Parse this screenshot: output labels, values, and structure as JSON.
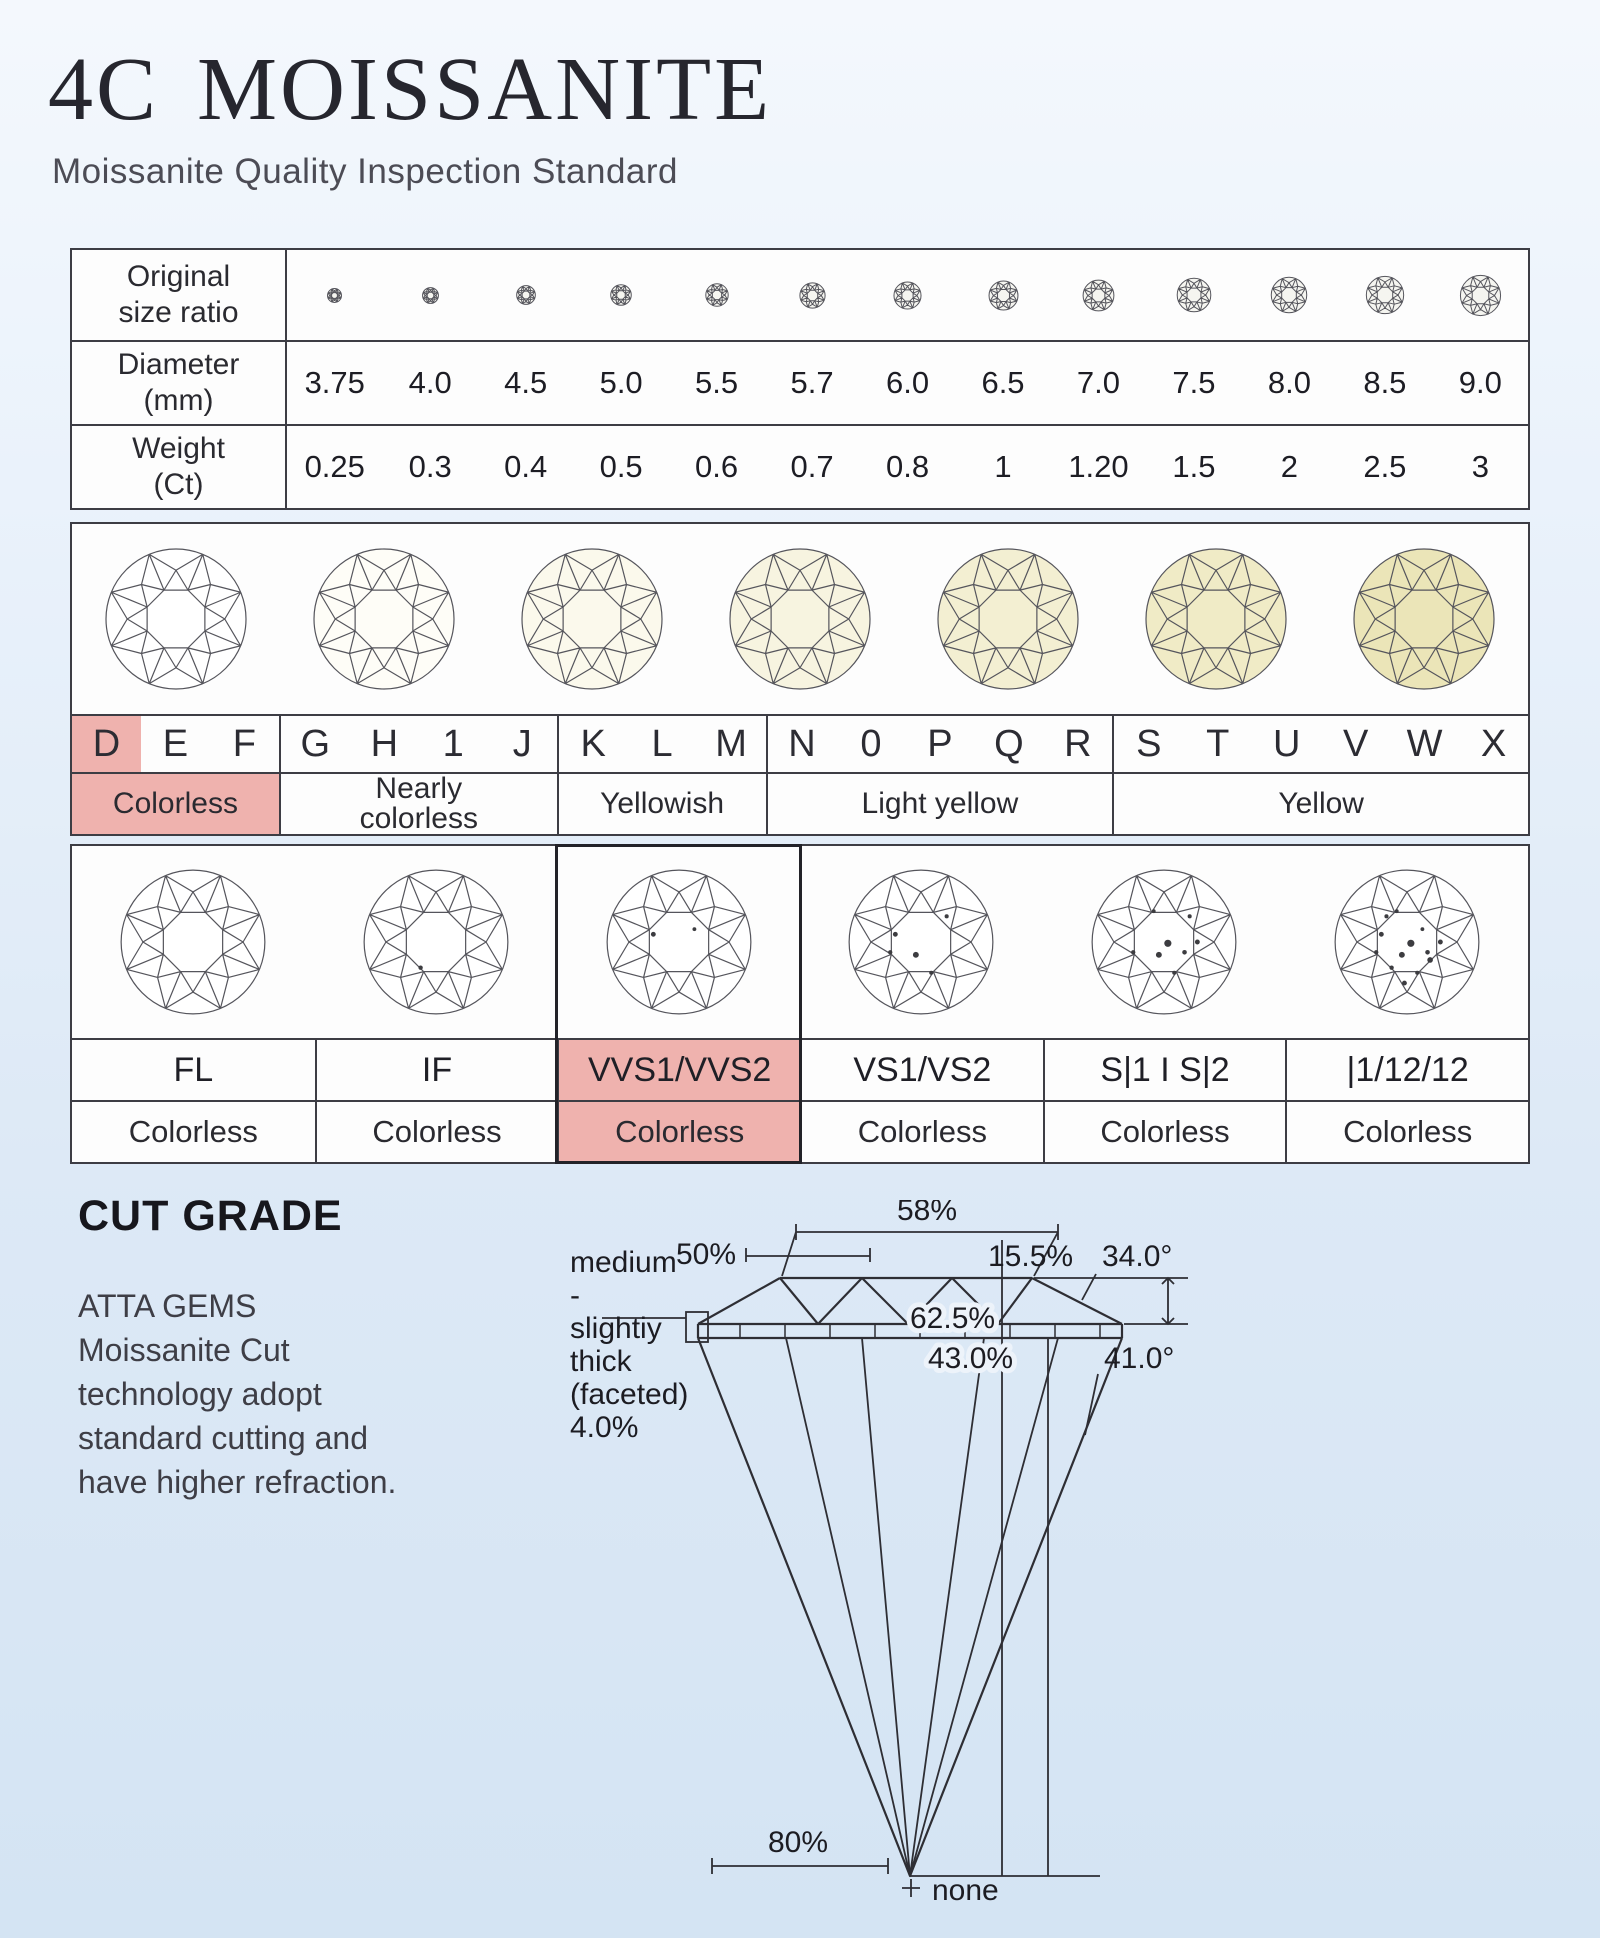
{
  "header": {
    "title_prefix": "4C",
    "title_main": "MOISSANITE",
    "subtitle": "Moissanite Quality Inspection Standard"
  },
  "size_table": {
    "size_label": [
      "Original",
      "size ratio"
    ],
    "diameter_label": [
      "Diameter",
      "(mm)"
    ],
    "weight_label": [
      "Weight",
      "(Ct)"
    ],
    "diameters": [
      "3.75",
      "4.0",
      "4.5",
      "5.0",
      "5.5",
      "5.7",
      "6.0",
      "6.5",
      "7.0",
      "7.5",
      "8.0",
      "8.5",
      "9.0"
    ],
    "weights": [
      "0.25",
      "0.3",
      "0.4",
      "0.5",
      "0.6",
      "0.7",
      "0.8",
      "1",
      "1.20",
      "1.5",
      "2",
      "2.5",
      "3"
    ]
  },
  "color_table": {
    "gem_fills": [
      "#ffffff",
      "#fefdf7",
      "#fbf9ec",
      "#f7f4e0",
      "#f3efd2",
      "#f0ebc6",
      "#ebe5b8"
    ],
    "letters": [
      "D",
      "E",
      "F",
      "G",
      "H",
      "1",
      "J",
      "K",
      "L",
      "M",
      "N",
      "0",
      "P",
      "Q",
      "R",
      "S",
      "T",
      "U",
      "V",
      "W",
      "X"
    ],
    "highlight_letter_index": 0,
    "groups": [
      {
        "label_lines": [
          "Colorless"
        ],
        "span": 3,
        "highlight": true
      },
      {
        "label_lines": [
          "Nearly",
          "colorless"
        ],
        "span": 4,
        "highlight": false
      },
      {
        "label_lines": [
          "Yellowish"
        ],
        "span": 3,
        "highlight": false
      },
      {
        "label_lines": [
          "Light yellow"
        ],
        "span": 5,
        "highlight": false
      },
      {
        "label_lines": [
          "Yellow"
        ],
        "span": 6,
        "highlight": false
      }
    ]
  },
  "clarity_table": {
    "columns": [
      {
        "grade": "FL",
        "purity": "Colorless",
        "inclusions": 0,
        "highlight": false
      },
      {
        "grade": "IF",
        "purity": "Colorless",
        "inclusions": 1,
        "highlight": false
      },
      {
        "grade": "VVS1/VVS2",
        "purity": "Colorless",
        "inclusions": 2,
        "highlight": true
      },
      {
        "grade": "VS1/VS2",
        "purity": "Colorless",
        "inclusions": 5,
        "highlight": false
      },
      {
        "grade": "S|1 I S|2",
        "purity": "Colorless",
        "inclusions": 8,
        "highlight": false
      },
      {
        "grade": "|1/12/12",
        "purity": "Colorless",
        "inclusions": 13,
        "highlight": false
      }
    ]
  },
  "cut": {
    "heading": "CUT GRADE",
    "text_lines": [
      "ATTA GEMS",
      "Moissanite Cut",
      "technology adopt",
      "standard cutting and",
      "have higher refraction."
    ],
    "labels": {
      "star_pct": "50%",
      "table_pct": "58%",
      "crown_pct": "15.5%",
      "crown_angle": "34.0°",
      "depth_pct": "62.5%",
      "pavilion_pct": "43.0%",
      "pavilion_angle": "41.0°",
      "girdle_lines": [
        "medium",
        "-",
        "slightiy",
        "thick",
        "(faceted)",
        "4.0%"
      ],
      "lower_pct": "80%",
      "culet": "none"
    }
  },
  "colors": {
    "highlight_pink": "#efb2ae",
    "table_border": "#3d3d44",
    "gem_stroke": "#55555c"
  }
}
